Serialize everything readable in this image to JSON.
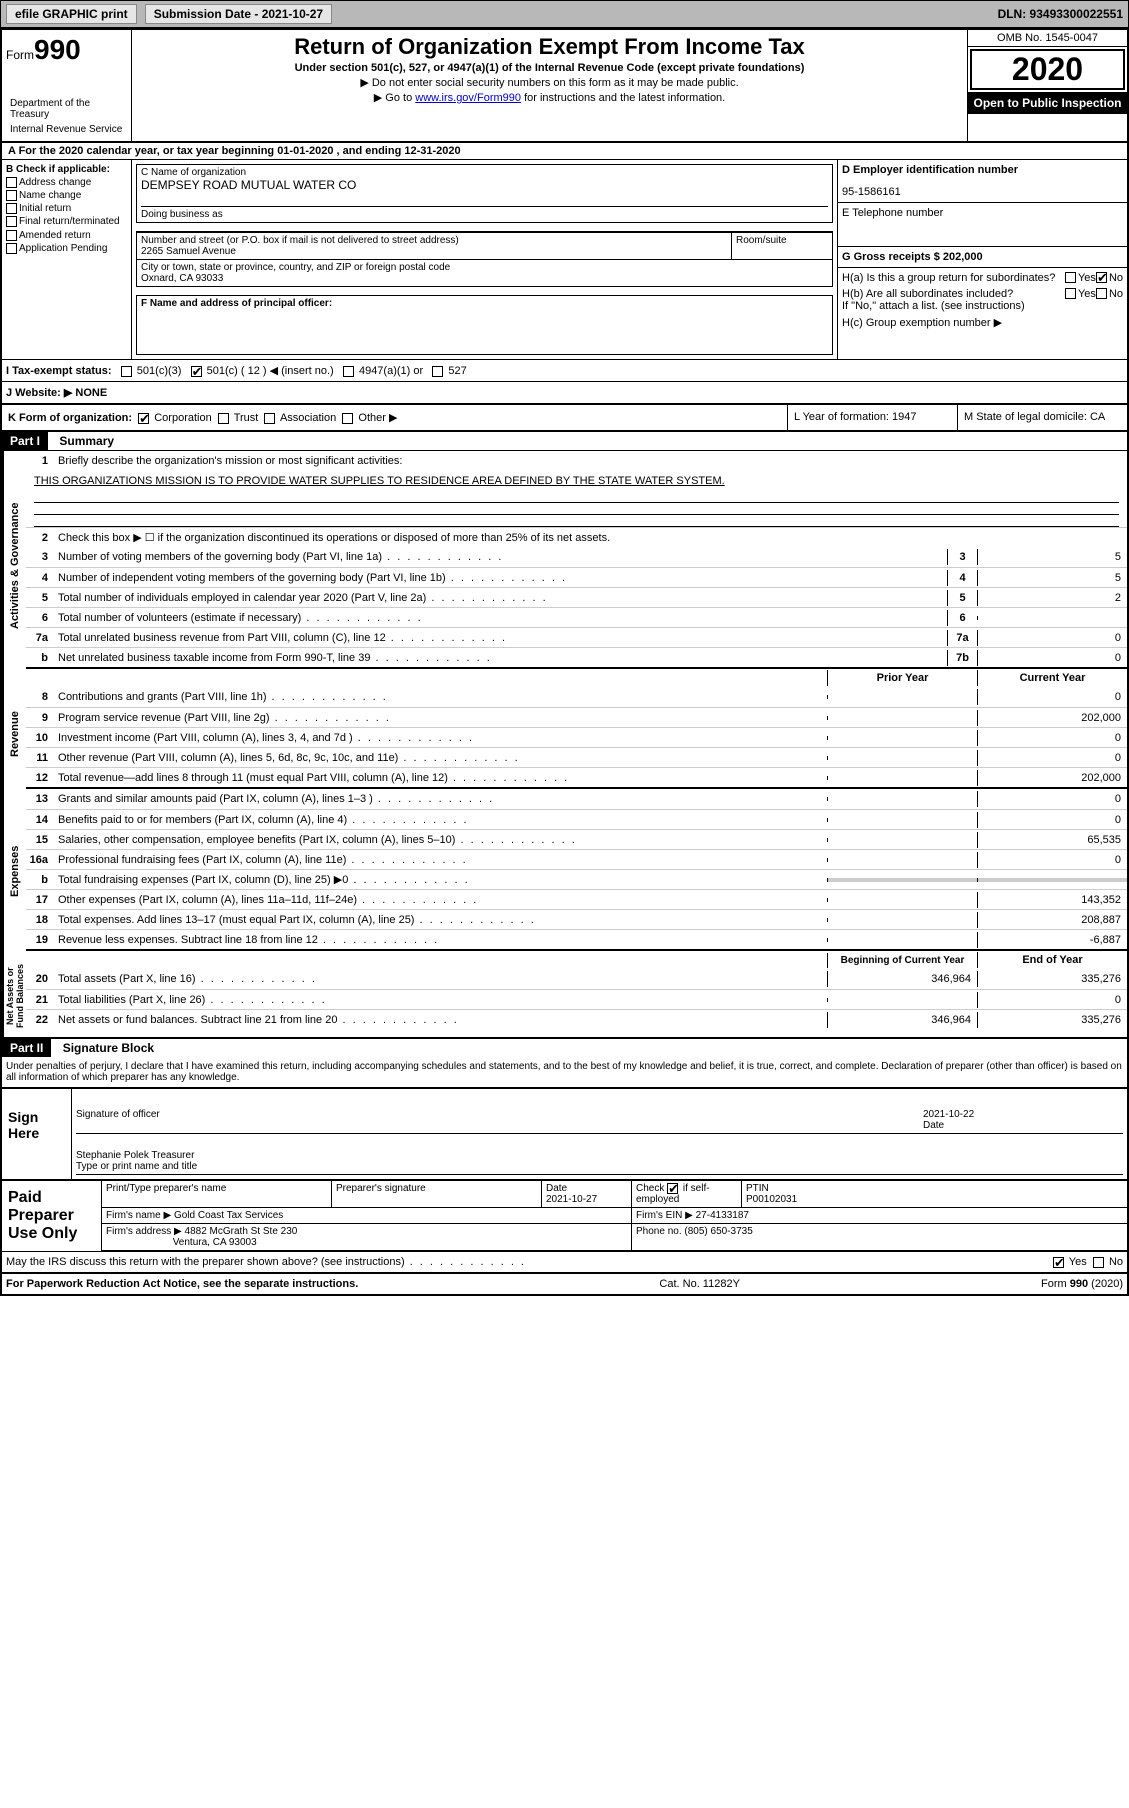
{
  "toolbar": {
    "efile": "efile GRAPHIC print",
    "sub_label": "Submission Date - 2021-10-27",
    "dln": "DLN: 93493300022551"
  },
  "header": {
    "form_word": "Form",
    "form_num": "990",
    "title": "Return of Organization Exempt From Income Tax",
    "subtitle": "Under section 501(c), 527, or 4947(a)(1) of the Internal Revenue Code (except private foundations)",
    "note1": "▶ Do not enter social security numbers on this form as it may be made public.",
    "note2_pre": "▶ Go to ",
    "note2_link": "www.irs.gov/Form990",
    "note2_post": " for instructions and the latest information.",
    "dept1": "Department of the Treasury",
    "dept2": "Internal Revenue Service",
    "omb": "OMB No. 1545-0047",
    "year": "2020",
    "open_public": "Open to Public Inspection"
  },
  "row_a": "A For the 2020 calendar year, or tax year beginning 01-01-2020    , and ending 12-31-2020",
  "col_b": {
    "title": "B Check if applicable:",
    "opts": [
      "Address change",
      "Name change",
      "Initial return",
      "Final return/terminated",
      "Amended return",
      "Application Pending"
    ]
  },
  "org": {
    "name_label": "C Name of organization",
    "name": "DEMPSEY ROAD MUTUAL WATER CO",
    "dba_label": "Doing business as",
    "dba": "",
    "addr_label": "Number and street (or P.O. box if mail is not delivered to street address)",
    "addr": "2265 Samuel Avenue",
    "room_label": "Room/suite",
    "city_label": "City or town, state or province, country, and ZIP or foreign postal code",
    "city": "Oxnard, CA  93033",
    "officer_label": "F  Name and address of principal officer:"
  },
  "right": {
    "ein_label": "D Employer identification number",
    "ein": "95-1586161",
    "tel_label": "E Telephone number",
    "gross_label": "G Gross receipts $ 202,000",
    "ha": "H(a)  Is this a group return for subordinates?",
    "hb": "H(b)  Are all subordinates included?",
    "hb_note": "If \"No,\" attach a list. (see instructions)",
    "hc": "H(c)  Group exemption number ▶",
    "yes": "Yes",
    "no": "No"
  },
  "status": {
    "label": "I   Tax-exempt status:",
    "opts": [
      "501(c)(3)",
      "501(c) ( 12 ) ◀ (insert no.)",
      "4947(a)(1) or",
      "527"
    ]
  },
  "website": {
    "label": "J   Website: ▶",
    "val": "  NONE"
  },
  "k": {
    "label": "K Form of organization:",
    "opts": [
      "Corporation",
      "Trust",
      "Association",
      "Other ▶"
    ],
    "l": "L Year of formation: 1947",
    "m": "M State of legal domicile: CA"
  },
  "part1": {
    "header": "Part I",
    "title": "Summary",
    "line1": "Briefly describe the organization's mission or most significant activities:",
    "mission": "THIS ORGANIZATIONS MISSION IS TO PROVIDE WATER SUPPLIES TO RESIDENCE AREA DEFINED BY THE STATE WATER SYSTEM.",
    "line2": "Check this box ▶ ☐  if the organization discontinued its operations or disposed of more than 25% of its net assets.",
    "vert1": "Activities & Governance",
    "vert2": "Revenue",
    "vert3": "Expenses",
    "vert4": "Net Assets or Fund Balances",
    "lines_gov": [
      {
        "n": "3",
        "t": "Number of voting members of the governing body (Part VI, line 1a)",
        "b": "3",
        "v": "5"
      },
      {
        "n": "4",
        "t": "Number of independent voting members of the governing body (Part VI, line 1b)",
        "b": "4",
        "v": "5"
      },
      {
        "n": "5",
        "t": "Total number of individuals employed in calendar year 2020 (Part V, line 2a)",
        "b": "5",
        "v": "2"
      },
      {
        "n": "6",
        "t": "Total number of volunteers (estimate if necessary)",
        "b": "6",
        "v": ""
      },
      {
        "n": "7a",
        "t": "Total unrelated business revenue from Part VIII, column (C), line 12",
        "b": "7a",
        "v": "0"
      },
      {
        "n": "b",
        "t": "Net unrelated business taxable income from Form 990-T, line 39",
        "b": "7b",
        "v": "0"
      }
    ],
    "prior": "Prior Year",
    "current": "Current Year",
    "lines_rev": [
      {
        "n": "8",
        "t": "Contributions and grants (Part VIII, line 1h)",
        "p": "",
        "c": "0"
      },
      {
        "n": "9",
        "t": "Program service revenue (Part VIII, line 2g)",
        "p": "",
        "c": "202,000"
      },
      {
        "n": "10",
        "t": "Investment income (Part VIII, column (A), lines 3, 4, and 7d )",
        "p": "",
        "c": "0"
      },
      {
        "n": "11",
        "t": "Other revenue (Part VIII, column (A), lines 5, 6d, 8c, 9c, 10c, and 11e)",
        "p": "",
        "c": "0"
      },
      {
        "n": "12",
        "t": "Total revenue—add lines 8 through 11 (must equal Part VIII, column (A), line 12)",
        "p": "",
        "c": "202,000"
      }
    ],
    "lines_exp": [
      {
        "n": "13",
        "t": "Grants and similar amounts paid (Part IX, column (A), lines 1–3 )",
        "p": "",
        "c": "0"
      },
      {
        "n": "14",
        "t": "Benefits paid to or for members (Part IX, column (A), line 4)",
        "p": "",
        "c": "0"
      },
      {
        "n": "15",
        "t": "Salaries, other compensation, employee benefits (Part IX, column (A), lines 5–10)",
        "p": "",
        "c": "65,535"
      },
      {
        "n": "16a",
        "t": "Professional fundraising fees (Part IX, column (A), line 11e)",
        "p": "",
        "c": "0"
      },
      {
        "n": "b",
        "t": "Total fundraising expenses (Part IX, column (D), line 25) ▶0",
        "p": "shade",
        "c": "shade"
      },
      {
        "n": "17",
        "t": "Other expenses (Part IX, column (A), lines 11a–11d, 11f–24e)",
        "p": "",
        "c": "143,352"
      },
      {
        "n": "18",
        "t": "Total expenses. Add lines 13–17 (must equal Part IX, column (A), line 25)",
        "p": "",
        "c": "208,887"
      },
      {
        "n": "19",
        "t": "Revenue less expenses. Subtract line 18 from line 12",
        "p": "",
        "c": "-6,887"
      }
    ],
    "begin": "Beginning of Current Year",
    "end": "End of Year",
    "lines_net": [
      {
        "n": "20",
        "t": "Total assets (Part X, line 16)",
        "p": "346,964",
        "c": "335,276"
      },
      {
        "n": "21",
        "t": "Total liabilities (Part X, line 26)",
        "p": "",
        "c": "0"
      },
      {
        "n": "22",
        "t": "Net assets or fund balances. Subtract line 21 from line 20",
        "p": "346,964",
        "c": "335,276"
      }
    ]
  },
  "part2": {
    "header": "Part II",
    "title": "Signature Block",
    "penalty": "Under penalties of perjury, I declare that I have examined this return, including accompanying schedules and statements, and to the best of my knowledge and belief, it is true, correct, and complete. Declaration of preparer (other than officer) is based on all information of which preparer has any knowledge."
  },
  "sign": {
    "label": "Sign Here",
    "sig_officer": "Signature of officer",
    "date": "Date",
    "date_val": "2021-10-22",
    "name": "Stephanie Polek Treasurer",
    "name_label": "Type or print name and title"
  },
  "preparer": {
    "label": "Paid Preparer Use Only",
    "print_name": "Print/Type preparer's name",
    "sig": "Preparer's signature",
    "date_label": "Date",
    "date": "2021-10-27",
    "check_label": "Check ☑ if self-employed",
    "ptin_label": "PTIN",
    "ptin": "P00102031",
    "firm_name_label": "Firm's name    ▶",
    "firm_name": "Gold Coast Tax Services",
    "firm_ein_label": "Firm's EIN ▶",
    "firm_ein": "27-4133187",
    "firm_addr_label": "Firm's address ▶",
    "firm_addr": "4882 McGrath St Ste 230",
    "firm_city": "Ventura, CA  93003",
    "phone_label": "Phone no.",
    "phone": "(805) 650-3735"
  },
  "footer": {
    "discuss": "May the IRS discuss this return with the preparer shown above? (see instructions)",
    "yes": "Yes",
    "no": "No",
    "paperwork": "For Paperwork Reduction Act Notice, see the separate instructions.",
    "cat": "Cat. No. 11282Y",
    "form": "Form 990 (2020)"
  }
}
